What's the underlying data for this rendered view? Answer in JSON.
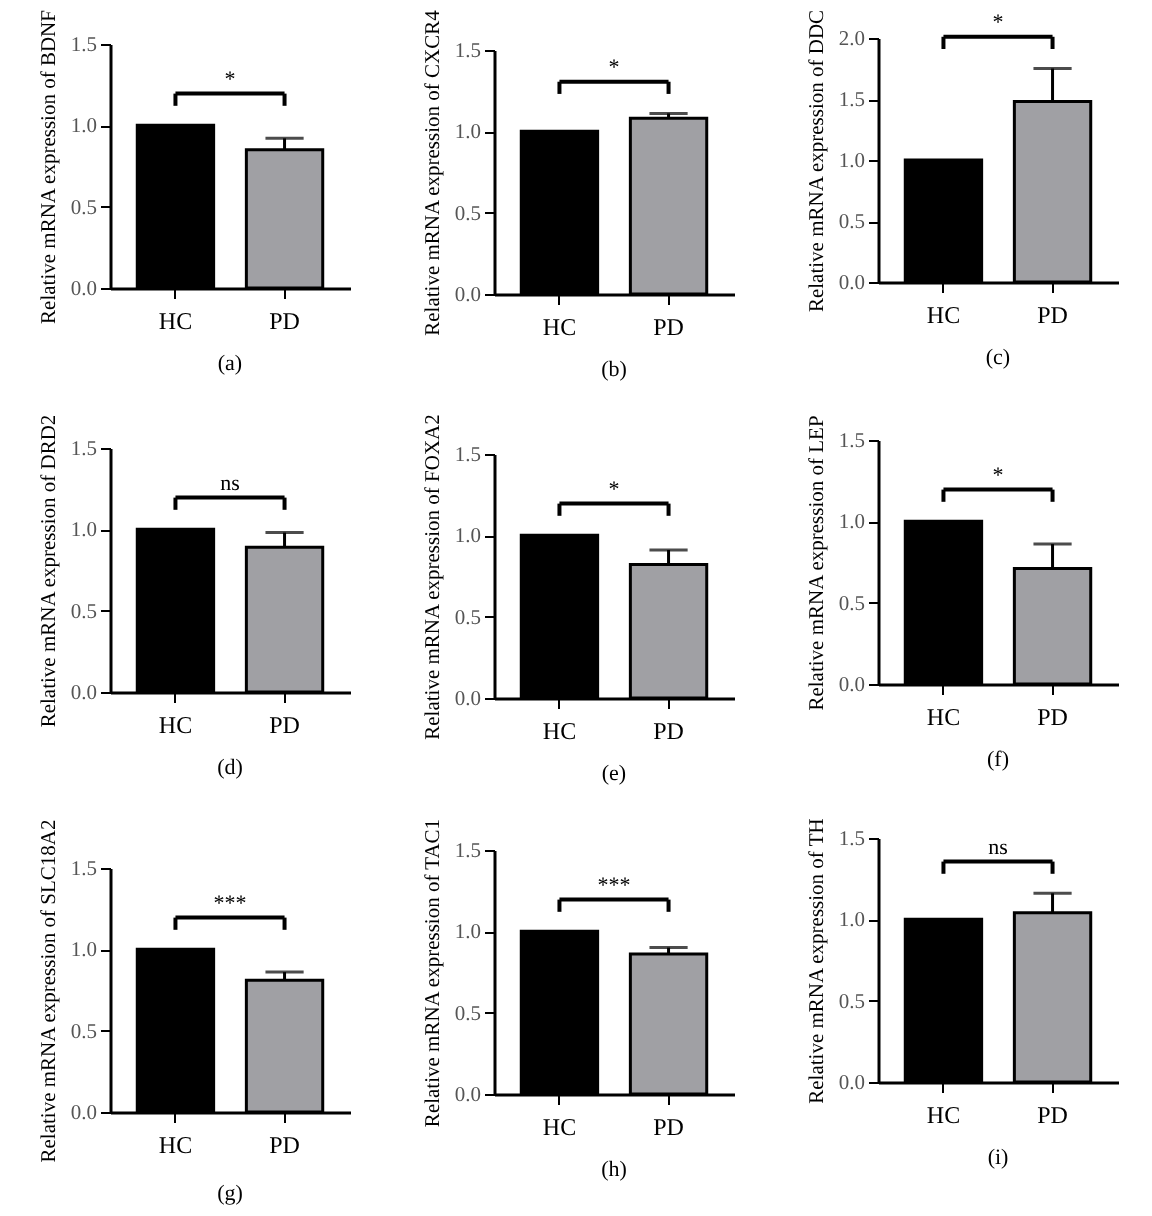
{
  "chart_data": [
    {
      "type": "bar",
      "title": "(a)",
      "ylabel": "Relative mRNA expression of BDNF",
      "categories": [
        "HC",
        "PD"
      ],
      "values": [
        1.0,
        0.85
      ],
      "colors": [
        "#000000",
        "#a0a0a4"
      ],
      "errors": [
        null,
        [
          0.85,
          0.92
        ]
      ],
      "ylim": [
        0,
        1.5
      ],
      "yticks": [
        {
          "value": 0,
          "label": "0.0"
        },
        {
          "value": 0.5,
          "label": "0.5"
        },
        {
          "value": 1,
          "label": "1.0"
        },
        {
          "value": 1.5,
          "label": "1.5"
        }
      ],
      "annotations": [
        "*"
      ]
    },
    {
      "type": "bar",
      "title": "(b)",
      "ylabel": "Relative mRNA expression of CXCR4",
      "categories": [
        "HC",
        "PD"
      ],
      "values": [
        1.0,
        1.08
      ],
      "colors": [
        "#000000",
        "#a0a0a4"
      ],
      "errors": [
        null,
        [
          1.08,
          1.11
        ]
      ],
      "ylim": [
        0,
        1.5
      ],
      "yticks": [
        {
          "value": 0,
          "label": "0.0"
        },
        {
          "value": 0.5,
          "label": "0.5"
        },
        {
          "value": 1,
          "label": "1.0"
        },
        {
          "value": 1.5,
          "label": "1.5"
        }
      ],
      "annotations": [
        "*"
      ]
    },
    {
      "type": "bar",
      "title": "(c)",
      "ylabel": "Relative mRNA expression of DDC",
      "categories": [
        "HC",
        "PD"
      ],
      "values": [
        1.0,
        1.48
      ],
      "colors": [
        "#000000",
        "#a0a0a4"
      ],
      "errors": [
        null,
        [
          1.48,
          1.75
        ]
      ],
      "ylim": [
        0,
        2.0
      ],
      "yticks": [
        {
          "value": 0,
          "label": "0.0"
        },
        {
          "value": 0.5,
          "label": "0.5"
        },
        {
          "value": 1,
          "label": "1.0"
        },
        {
          "value": 1.5,
          "label": "1.5"
        },
        {
          "value": 2,
          "label": "2.0"
        }
      ],
      "annotations": [
        "*"
      ]
    },
    {
      "type": "bar",
      "title": "(d)",
      "ylabel": "Relative mRNA expression of DRD2",
      "categories": [
        "HC",
        "PD"
      ],
      "values": [
        1.0,
        0.89
      ],
      "colors": [
        "#000000",
        "#a0a0a4"
      ],
      "errors": [
        null,
        [
          0.89,
          0.98
        ]
      ],
      "ylim": [
        0,
        1.5
      ],
      "yticks": [
        {
          "value": 0,
          "label": "0.0"
        },
        {
          "value": 0.5,
          "label": "0.5"
        },
        {
          "value": 1,
          "label": "1.0"
        },
        {
          "value": 1.5,
          "label": "1.5"
        }
      ],
      "annotations": [
        "ns"
      ]
    },
    {
      "type": "bar",
      "title": "(e)",
      "ylabel": "Relative mRNA expression of FOXA2",
      "categories": [
        "HC",
        "PD"
      ],
      "values": [
        1.0,
        0.82
      ],
      "colors": [
        "#000000",
        "#a0a0a4"
      ],
      "errors": [
        null,
        [
          0.82,
          0.91
        ]
      ],
      "ylim": [
        0,
        1.5
      ],
      "yticks": [
        {
          "value": 0,
          "label": "0.0"
        },
        {
          "value": 0.5,
          "label": "0.5"
        },
        {
          "value": 1,
          "label": "1.0"
        },
        {
          "value": 1.5,
          "label": "1.5"
        }
      ],
      "annotations": [
        "*"
      ]
    },
    {
      "type": "bar",
      "title": "(f)",
      "ylabel": "Relative mRNA expression of LEP",
      "categories": [
        "HC",
        "PD"
      ],
      "values": [
        1.0,
        0.71
      ],
      "colors": [
        "#000000",
        "#a0a0a4"
      ],
      "errors": [
        null,
        [
          0.71,
          0.86
        ]
      ],
      "ylim": [
        0,
        1.5
      ],
      "yticks": [
        {
          "value": 0,
          "label": "0.0"
        },
        {
          "value": 0.5,
          "label": "0.5"
        },
        {
          "value": 1,
          "label": "1.0"
        },
        {
          "value": 1.5,
          "label": "1.5"
        }
      ],
      "annotations": [
        "*"
      ]
    },
    {
      "type": "bar",
      "title": "(g)",
      "ylabel": "Relative mRNA expression of SLC18A2",
      "categories": [
        "HC",
        "PD"
      ],
      "values": [
        1.0,
        0.81
      ],
      "colors": [
        "#000000",
        "#a0a0a4"
      ],
      "errors": [
        null,
        [
          0.81,
          0.86
        ]
      ],
      "ylim": [
        0,
        1.5
      ],
      "yticks": [
        {
          "value": 0,
          "label": "0.0"
        },
        {
          "value": 0.5,
          "label": "0.5"
        },
        {
          "value": 1,
          "label": "1.0"
        },
        {
          "value": 1.5,
          "label": "1.5"
        }
      ],
      "annotations": [
        "***"
      ]
    },
    {
      "type": "bar",
      "title": "(h)",
      "ylabel": "Relative mRNA expression of TAC1",
      "categories": [
        "HC",
        "PD"
      ],
      "values": [
        1.0,
        0.86
      ],
      "colors": [
        "#000000",
        "#a0a0a4"
      ],
      "errors": [
        null,
        [
          0.86,
          0.9
        ]
      ],
      "ylim": [
        0,
        1.5
      ],
      "yticks": [
        {
          "value": 0,
          "label": "0.0"
        },
        {
          "value": 0.5,
          "label": "0.5"
        },
        {
          "value": 1,
          "label": "1.0"
        },
        {
          "value": 1.5,
          "label": "1.5"
        }
      ],
      "annotations": [
        "***"
      ]
    },
    {
      "type": "bar",
      "title": "(i)",
      "ylabel": "Relative mRNA expression of TH",
      "categories": [
        "HC",
        "PD"
      ],
      "values": [
        1.0,
        1.04
      ],
      "colors": [
        "#000000",
        "#a0a0a4"
      ],
      "errors": [
        null,
        [
          1.04,
          1.16
        ]
      ],
      "ylim": [
        0,
        1.5
      ],
      "yticks": [
        {
          "value": 0,
          "label": "0.0"
        },
        {
          "value": 0.5,
          "label": "0.5"
        },
        {
          "value": 1,
          "label": "1.0"
        },
        {
          "value": 1.5,
          "label": "1.5"
        }
      ],
      "annotations": [
        "ns"
      ]
    }
  ]
}
